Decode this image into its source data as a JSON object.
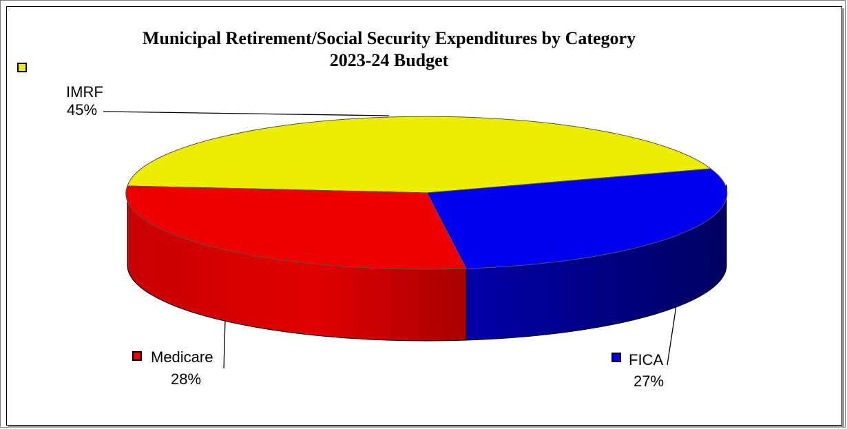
{
  "chart_data": {
    "type": "pie",
    "title": "Municipal Retirement/Social Security Expenditures by Category",
    "subtitle": "2023-24 Budget",
    "slices": [
      {
        "label": "IMRF",
        "value": 45,
        "value_label": "45%",
        "color": "#eded00"
      },
      {
        "label": "FICA",
        "value": 27,
        "value_label": "27%",
        "color": "#0000ee"
      },
      {
        "label": "Medicare",
        "value": 28,
        "value_label": "28%",
        "color": "#ee0000"
      }
    ],
    "legend": "labels-with-swatches",
    "style": "3d"
  }
}
